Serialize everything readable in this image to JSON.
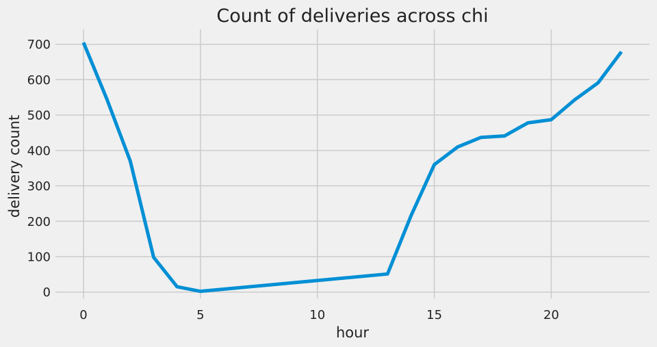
{
  "chart_data": {
    "type": "line",
    "title": "Count of deliveries across chi",
    "xlabel": "hour",
    "ylabel": "delivery count",
    "xlim": [
      -1.2,
      24.2
    ],
    "ylim": [
      -18,
      742
    ],
    "x_ticks": [
      0,
      5,
      10,
      15,
      20
    ],
    "y_ticks": [
      0,
      100,
      200,
      300,
      400,
      500,
      600,
      700
    ],
    "grid": true,
    "legend": "none",
    "colors": {
      "background": "#f0f0f0",
      "grid": "#cbcbcb",
      "series": "#008fd5",
      "text": "#222222"
    },
    "x": [
      0,
      1,
      2,
      3,
      4,
      5,
      13,
      14,
      15,
      16,
      17,
      18,
      19,
      20,
      21,
      22,
      23
    ],
    "series": [
      {
        "values": [
          705,
          545,
          370,
          98,
          15,
          2,
          51,
          215,
          360,
          410,
          437,
          441,
          478,
          487,
          543,
          591,
          679
        ]
      }
    ]
  }
}
